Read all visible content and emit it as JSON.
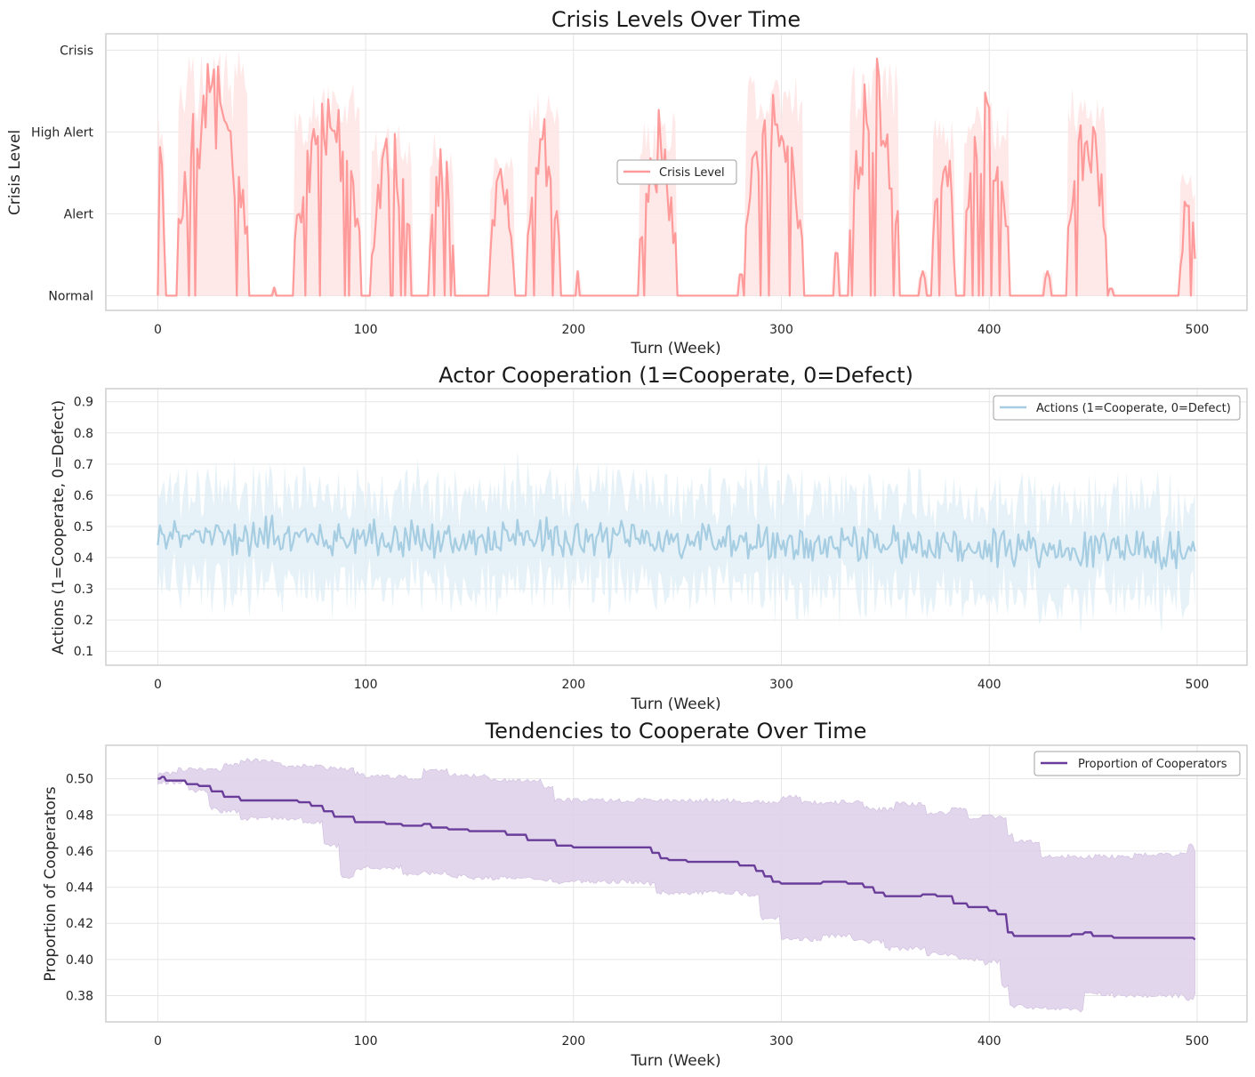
{
  "chart_data": [
    {
      "type": "line",
      "title": "Crisis Levels Over Time",
      "xlabel": "Turn (Week)",
      "ylabel": "Crisis Level",
      "xlim": [
        -25,
        524
      ],
      "ylim": [
        -0.18,
        3.2
      ],
      "xticks": [
        0,
        100,
        200,
        300,
        400,
        500
      ],
      "yticks": [
        0,
        1,
        2,
        3
      ],
      "ytick_labels": [
        "Normal",
        "Alert",
        "High Alert",
        "Crisis"
      ],
      "grid": true,
      "legend_position": "center",
      "colors": {
        "line": "#ff9a9a",
        "band": "#ffe4e4"
      },
      "series": [
        {
          "name": "Crisis Level",
          "episodes": [
            {
              "start": 0,
              "end": 3,
              "peak": 2.3
            },
            {
              "start": 10,
              "end": 43,
              "peak": 3.0
            },
            {
              "start": 55,
              "end": 57,
              "peak": 0.1
            },
            {
              "start": 66,
              "end": 97,
              "peak": 2.6
            },
            {
              "start": 103,
              "end": 122,
              "peak": 2.1
            },
            {
              "start": 131,
              "end": 142,
              "peak": 2.0
            },
            {
              "start": 160,
              "end": 171,
              "peak": 1.8
            },
            {
              "start": 178,
              "end": 193,
              "peak": 2.5
            },
            {
              "start": 201,
              "end": 203,
              "peak": 0.3
            },
            {
              "start": 232,
              "end": 249,
              "peak": 2.3
            },
            {
              "start": 279,
              "end": 282,
              "peak": 0.3
            },
            {
              "start": 282,
              "end": 310,
              "peak": 2.7
            },
            {
              "start": 325,
              "end": 328,
              "peak": 0.6
            },
            {
              "start": 333,
              "end": 356,
              "peak": 3.0
            },
            {
              "start": 366,
              "end": 370,
              "peak": 0.3
            },
            {
              "start": 373,
              "end": 383,
              "peak": 2.3
            },
            {
              "start": 388,
              "end": 409,
              "peak": 2.5
            },
            {
              "start": 426,
              "end": 430,
              "peak": 0.3
            },
            {
              "start": 438,
              "end": 456,
              "peak": 2.6
            },
            {
              "start": 457,
              "end": 460,
              "peak": 0.1
            },
            {
              "start": 492,
              "end": 499,
              "peak": 1.5
            }
          ]
        }
      ]
    },
    {
      "type": "line",
      "title": "Actor Cooperation (1=Cooperate, 0=Defect)",
      "xlabel": "Turn (Week)",
      "ylabel": "Actions (1=Cooperate, 0=Defect)",
      "xlim": [
        -25,
        524
      ],
      "ylim": [
        0.055,
        0.942
      ],
      "xticks": [
        0,
        100,
        200,
        300,
        400,
        500
      ],
      "yticks": [
        0.1,
        0.2,
        0.3,
        0.4,
        0.5,
        0.6,
        0.7,
        0.8,
        0.9
      ],
      "ytick_labels": [
        "0.1",
        "0.2",
        "0.3",
        "0.4",
        "0.5",
        "0.6",
        "0.7",
        "0.8",
        "0.9"
      ],
      "grid": true,
      "legend_position": "upper right",
      "colors": {
        "line": "#a6cde2",
        "band": "#deedf4"
      },
      "series": [
        {
          "name": "Actions (1=Cooperate, 0=Defect)",
          "trend": [
            [
              0,
              0.47
            ],
            [
              100,
              0.47
            ],
            [
              200,
              0.46
            ],
            [
              300,
              0.445
            ],
            [
              400,
              0.43
            ],
            [
              499,
              0.42
            ]
          ],
          "amplitude": 0.045,
          "band_halfwidth": 0.15,
          "start_value": 0.44,
          "end_value": 0.42
        }
      ]
    },
    {
      "type": "line",
      "title": "Tendencies to Cooperate Over Time",
      "xlabel": "Turn (Week)",
      "ylabel": "Proportion of Cooperators",
      "xlim": [
        -25,
        524
      ],
      "ylim": [
        0.3655,
        0.5185
      ],
      "xticks": [
        0,
        100,
        200,
        300,
        400,
        500
      ],
      "yticks": [
        0.38,
        0.4,
        0.42,
        0.44,
        0.46,
        0.48,
        0.5
      ],
      "ytick_labels": [
        "0.38",
        "0.40",
        "0.42",
        "0.44",
        "0.46",
        "0.48",
        "0.50"
      ],
      "grid": true,
      "legend_position": "upper right",
      "colors": {
        "line": "#6a3d9a",
        "band": "#e0d4ea"
      },
      "series": [
        {
          "name": "Proportion of Cooperators",
          "mean": [
            [
              0,
              0.5
            ],
            [
              2,
              0.501
            ],
            [
              4,
              0.499
            ],
            [
              10,
              0.499
            ],
            [
              14,
              0.497
            ],
            [
              20,
              0.496
            ],
            [
              26,
              0.493
            ],
            [
              32,
              0.49
            ],
            [
              40,
              0.488
            ],
            [
              60,
              0.488
            ],
            [
              68,
              0.487
            ],
            [
              74,
              0.485
            ],
            [
              80,
              0.482
            ],
            [
              85,
              0.479
            ],
            [
              95,
              0.476
            ],
            [
              110,
              0.475
            ],
            [
              118,
              0.474
            ],
            [
              128,
              0.475
            ],
            [
              132,
              0.473
            ],
            [
              140,
              0.472
            ],
            [
              150,
              0.471
            ],
            [
              165,
              0.471
            ],
            [
              168,
              0.469
            ],
            [
              178,
              0.466
            ],
            [
              186,
              0.466
            ],
            [
              192,
              0.463
            ],
            [
              200,
              0.462
            ],
            [
              220,
              0.462
            ],
            [
              235,
              0.462
            ],
            [
              238,
              0.459
            ],
            [
              242,
              0.456
            ],
            [
              246,
              0.455
            ],
            [
              255,
              0.454
            ],
            [
              275,
              0.454
            ],
            [
              280,
              0.452
            ],
            [
              288,
              0.449
            ],
            [
              292,
              0.446
            ],
            [
              296,
              0.443
            ],
            [
              300,
              0.442
            ],
            [
              320,
              0.443
            ],
            [
              332,
              0.442
            ],
            [
              340,
              0.44
            ],
            [
              345,
              0.437
            ],
            [
              350,
              0.435
            ],
            [
              360,
              0.435
            ],
            [
              368,
              0.436
            ],
            [
              375,
              0.435
            ],
            [
              383,
              0.431
            ],
            [
              390,
              0.429
            ],
            [
              396,
              0.429
            ],
            [
              400,
              0.427
            ],
            [
              404,
              0.425
            ],
            [
              409,
              0.415
            ],
            [
              412,
              0.413
            ],
            [
              425,
              0.413
            ],
            [
              440,
              0.414
            ],
            [
              446,
              0.415
            ],
            [
              450,
              0.413
            ],
            [
              460,
              0.412
            ],
            [
              480,
              0.412
            ],
            [
              495,
              0.412
            ],
            [
              499,
              0.411
            ]
          ],
          "upper": [
            [
              0,
              0.503
            ],
            [
              10,
              0.505
            ],
            [
              25,
              0.505
            ],
            [
              32,
              0.508
            ],
            [
              40,
              0.51
            ],
            [
              60,
              0.507
            ],
            [
              80,
              0.506
            ],
            [
              90,
              0.505
            ],
            [
              95,
              0.503
            ],
            [
              100,
              0.501
            ],
            [
              120,
              0.5
            ],
            [
              128,
              0.505
            ],
            [
              140,
              0.502
            ],
            [
              160,
              0.499
            ],
            [
              185,
              0.496
            ],
            [
              190,
              0.495
            ],
            [
              191,
              0.488
            ],
            [
              200,
              0.488
            ],
            [
              235,
              0.488
            ],
            [
              260,
              0.488
            ],
            [
              280,
              0.487
            ],
            [
              300,
              0.49
            ],
            [
              310,
              0.487
            ],
            [
              330,
              0.487
            ],
            [
              340,
              0.484
            ],
            [
              345,
              0.483
            ],
            [
              355,
              0.486
            ],
            [
              370,
              0.481
            ],
            [
              382,
              0.484
            ],
            [
              390,
              0.478
            ],
            [
              396,
              0.479
            ],
            [
              402,
              0.478
            ],
            [
              405,
              0.479
            ],
            [
              409,
              0.469
            ],
            [
              412,
              0.465
            ],
            [
              425,
              0.457
            ],
            [
              460,
              0.457
            ],
            [
              470,
              0.458
            ],
            [
              490,
              0.458
            ],
            [
              496,
              0.463
            ],
            [
              499,
              0.46
            ]
          ],
          "lower": [
            [
              0,
              0.498
            ],
            [
              15,
              0.493
            ],
            [
              25,
              0.484
            ],
            [
              30,
              0.482
            ],
            [
              40,
              0.478
            ],
            [
              70,
              0.476
            ],
            [
              80,
              0.463
            ],
            [
              88,
              0.446
            ],
            [
              95,
              0.45
            ],
            [
              100,
              0.451
            ],
            [
              118,
              0.447
            ],
            [
              128,
              0.448
            ],
            [
              140,
              0.446
            ],
            [
              150,
              0.445
            ],
            [
              180,
              0.444
            ],
            [
              190,
              0.443
            ],
            [
              200,
              0.443
            ],
            [
              234,
              0.442
            ],
            [
              240,
              0.437
            ],
            [
              260,
              0.437
            ],
            [
              280,
              0.436
            ],
            [
              290,
              0.423
            ],
            [
              300,
              0.411
            ],
            [
              320,
              0.413
            ],
            [
              335,
              0.41
            ],
            [
              350,
              0.406
            ],
            [
              370,
              0.403
            ],
            [
              385,
              0.4
            ],
            [
              398,
              0.398
            ],
            [
              402,
              0.399
            ],
            [
              406,
              0.385
            ],
            [
              410,
              0.374
            ],
            [
              420,
              0.373
            ],
            [
              440,
              0.373
            ],
            [
              443,
              0.371
            ],
            [
              446,
              0.381
            ],
            [
              460,
              0.38
            ],
            [
              490,
              0.38
            ],
            [
              495,
              0.378
            ],
            [
              499,
              0.381
            ]
          ]
        }
      ]
    }
  ]
}
